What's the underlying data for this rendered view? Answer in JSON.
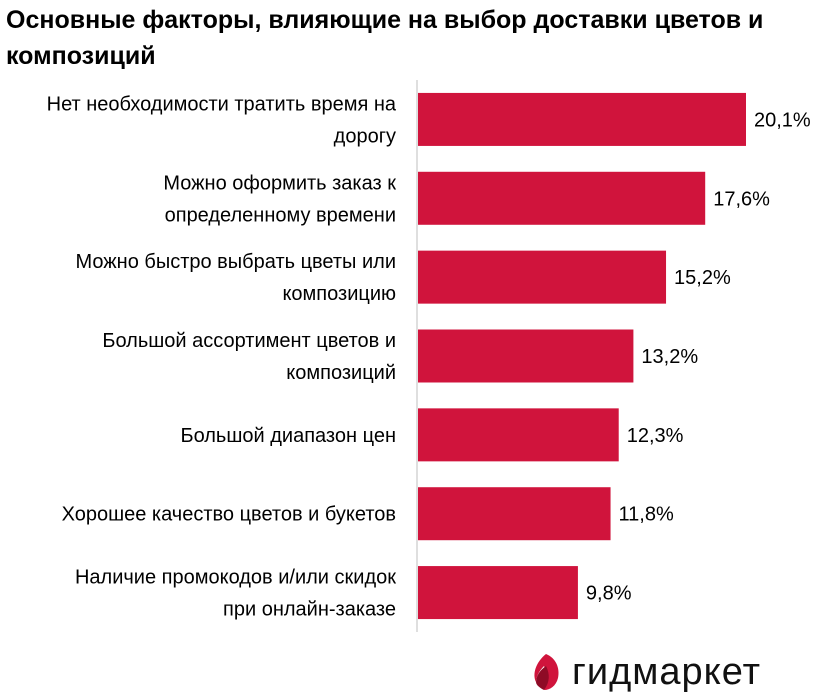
{
  "title": "Основные факторы, влияющие на выбор доставки цветов и композиций",
  "brand": {
    "name": "гидмаркет",
    "bar_color": "#d0143c"
  },
  "chart_data": {
    "type": "bar",
    "orientation": "horizontal",
    "categories": [
      [
        "Нет необходимости тратить время на",
        "дорогу"
      ],
      [
        "Можно оформить заказ к",
        "определенному времени"
      ],
      [
        "Можно быстро выбрать цветы или",
        "композицию"
      ],
      [
        "Большой ассортимент цветов и",
        "композиций"
      ],
      [
        "Большой диапазон цен"
      ],
      [
        "Хорошее качество цветов и букетов"
      ],
      [
        "Наличие промокодов и/или скидок",
        "при онлайн-заказе"
      ]
    ],
    "values": [
      20.1,
      17.6,
      15.2,
      13.2,
      12.3,
      11.8,
      9.8
    ],
    "value_labels": [
      "20,1%",
      "17,6%",
      "15,2%",
      "13,2%",
      "12,3%",
      "11,8%",
      "9,8%"
    ],
    "unit": "%",
    "grid": false,
    "legend": "none"
  }
}
